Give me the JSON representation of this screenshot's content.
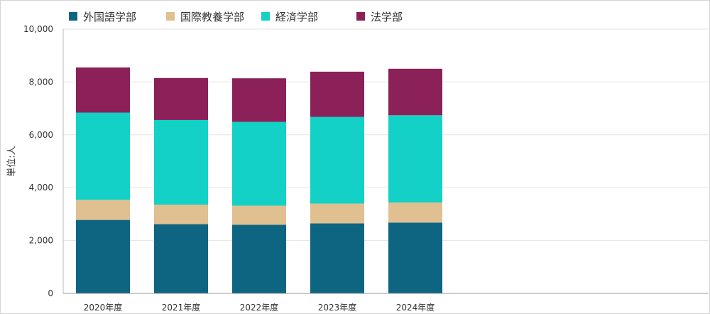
{
  "chart_data": {
    "type": "bar",
    "stacked": true,
    "categories": [
      "2020年度",
      "2021年度",
      "2022年度",
      "2023年度",
      "2024年度"
    ],
    "series": [
      {
        "name": "外国語学部",
        "color": "#0d6582",
        "values": [
          2780,
          2620,
          2600,
          2650,
          2680
        ]
      },
      {
        "name": "国際教養学部",
        "color": "#e0c090",
        "values": [
          760,
          740,
          720,
          750,
          760
        ]
      },
      {
        "name": "経済学部",
        "color": "#13d1c6",
        "values": [
          3300,
          3200,
          3170,
          3280,
          3300
        ]
      },
      {
        "name": "法学部",
        "color": "#8b2158",
        "values": [
          1710,
          1590,
          1650,
          1710,
          1760
        ]
      }
    ],
    "ylabel": "単位:人",
    "xlabel": "",
    "ylim": [
      0,
      10000
    ],
    "yticks": [
      0,
      2000,
      4000,
      6000,
      8000,
      10000
    ],
    "ytick_labels": [
      "0",
      "2,000",
      "4,000",
      "6,000",
      "8,000",
      "10,000"
    ],
    "grid": true,
    "legend_position": "top-left"
  }
}
